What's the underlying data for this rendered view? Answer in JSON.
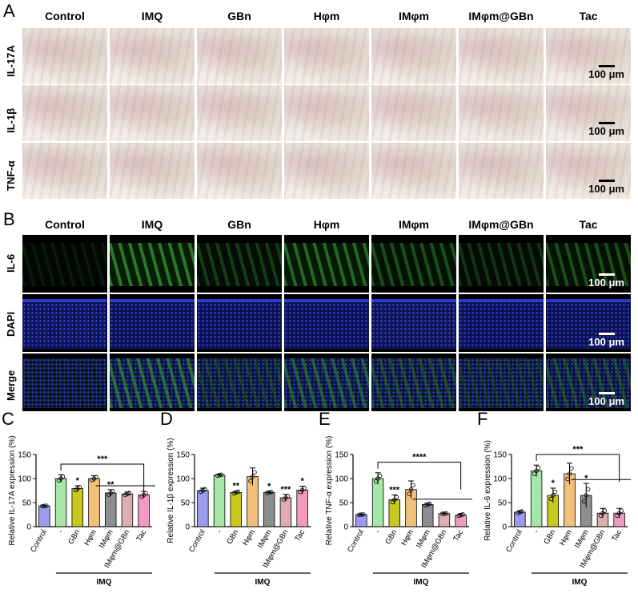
{
  "panels": {
    "A": "A",
    "B": "B",
    "C": "C",
    "D": "D",
    "E": "E",
    "F": "F"
  },
  "columns": [
    "Control",
    "IMQ",
    "GBn",
    "Hφm",
    "IMφm",
    "IMφm@GBn",
    "Tac"
  ],
  "panel_a_rows": [
    "IL-17A",
    "IL-1β",
    "TNF-α"
  ],
  "panel_b_rows": [
    "IL-6",
    "DAPI",
    "Merge"
  ],
  "scale_bar": "100 μm",
  "colors": {
    "bars": [
      "#9b9bf0",
      "#a6e6a6",
      "#c8c81e",
      "#f3c07a",
      "#8e8e8e",
      "#dcaeae",
      "#f29bc0"
    ],
    "dapi": "#1d2fd6",
    "il6": "#3fb43f"
  },
  "chart_data": [
    {
      "type": "bar",
      "panel": "C",
      "ylabel": "Relative IL-17A expression (%)",
      "categories": [
        "Control",
        "-",
        "GBn",
        "Hφm",
        "IMφm",
        "IMφm@GBn",
        "Tac"
      ],
      "group_label": "IMQ",
      "values": [
        43,
        100,
        79,
        100,
        70,
        68,
        66
      ],
      "errors": [
        1,
        8,
        6,
        6,
        7,
        4,
        7
      ],
      "ylim": [
        0,
        150
      ],
      "yticks": [
        "0",
        "50",
        "100",
        "150"
      ],
      "significance": [
        "",
        "",
        "*",
        "",
        "**",
        "",
        ""
      ],
      "bracket_label": "***"
    },
    {
      "type": "bar",
      "panel": "D",
      "ylabel": "Relative IL-1β expression (%)",
      "categories": [
        "Control",
        "-",
        "GBn",
        "Hφm",
        "IMφm",
        "IMφm@GBn",
        "Tac"
      ],
      "group_label": "IMQ",
      "values": [
        75,
        107,
        71,
        104,
        71,
        60,
        76
      ],
      "errors": [
        5,
        2,
        3,
        18,
        2,
        7,
        8
      ],
      "ylim": [
        0,
        150
      ],
      "yticks": [
        "0",
        "50",
        "100",
        "150"
      ],
      "significance": [
        "",
        "",
        "**",
        "",
        "*",
        "***",
        "*"
      ],
      "bracket_label": ""
    },
    {
      "type": "bar",
      "panel": "E",
      "ylabel": "Relative TNF-α expression (%)",
      "categories": [
        "Control",
        "-",
        "GBn",
        "Hφm",
        "IMφm",
        "IMφm@GBn",
        "Tac"
      ],
      "group_label": "IMQ",
      "values": [
        25,
        100,
        56,
        77,
        46,
        27,
        24
      ],
      "errors": [
        1,
        12,
        10,
        18,
        3,
        1,
        3
      ],
      "ylim": [
        0,
        150
      ],
      "yticks": [
        "0",
        "50",
        "100",
        "150"
      ],
      "significance": [
        "",
        "",
        "***",
        "",
        "",
        "",
        ""
      ],
      "bracket_label": "****"
    },
    {
      "type": "bar",
      "panel": "F",
      "ylabel": "Relative IL-6 expression (%)",
      "categories": [
        "Control",
        "-",
        "GBn",
        "Hφm",
        "IMφm",
        "IMφm@GBn",
        "Tac"
      ],
      "group_label": "IMQ",
      "values": [
        30,
        116,
        65,
        110,
        65,
        28,
        28
      ],
      "errors": [
        3,
        12,
        15,
        22,
        25,
        10,
        10
      ],
      "ylim": [
        0,
        150
      ],
      "yticks": [
        "0",
        "50",
        "100",
        "150"
      ],
      "significance": [
        "",
        "",
        "*",
        "",
        "*",
        "",
        ""
      ],
      "bracket_label": "***"
    }
  ]
}
